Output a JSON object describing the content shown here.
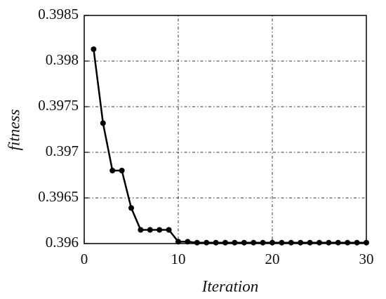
{
  "chart_data": {
    "type": "line",
    "xlabel": "Iteration",
    "ylabel": "fitness",
    "x": [
      1,
      2,
      3,
      4,
      5,
      6,
      7,
      8,
      9,
      10,
      11,
      12,
      13,
      14,
      15,
      16,
      17,
      18,
      19,
      20,
      21,
      22,
      23,
      24,
      25,
      26,
      27,
      28,
      29,
      30
    ],
    "values": [
      0.39813,
      0.39732,
      0.3968,
      0.3968,
      0.39639,
      0.39615,
      0.39615,
      0.39615,
      0.39615,
      0.39602,
      0.39602,
      0.39601,
      0.39601,
      0.39601,
      0.39601,
      0.39601,
      0.39601,
      0.39601,
      0.39601,
      0.39601,
      0.39601,
      0.39601,
      0.39601,
      0.39601,
      0.39601,
      0.39601,
      0.39601,
      0.39601,
      0.39601,
      0.39601
    ],
    "color": "#000000",
    "xlim": [
      0,
      30
    ],
    "xticks": [
      0,
      10,
      20,
      30
    ],
    "ylim": [
      0.396,
      0.3985
    ],
    "yticks": [
      0.396,
      0.3965,
      0.397,
      0.3975,
      0.398,
      0.3985
    ],
    "grid": true
  }
}
